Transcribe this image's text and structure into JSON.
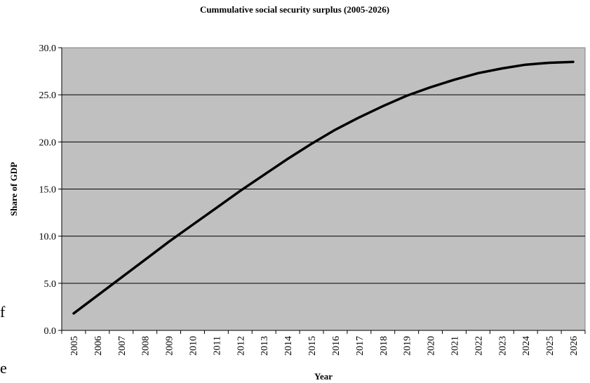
{
  "chart_data": {
    "type": "line",
    "title": "Cummulative social security surplus (2005-2026)",
    "xlabel": "Year",
    "ylabel": "Share of GDP",
    "categories": [
      "2005",
      "2006",
      "2007",
      "2008",
      "2009",
      "2010",
      "2011",
      "2012",
      "2013",
      "2014",
      "2015",
      "2016",
      "2017",
      "2018",
      "2019",
      "2020",
      "2021",
      "2022",
      "2023",
      "2024",
      "2025",
      "2026"
    ],
    "series": [
      {
        "values": [
          1.8,
          3.7,
          5.6,
          7.5,
          9.4,
          11.2,
          13.0,
          14.8,
          16.5,
          18.2,
          19.8,
          21.3,
          22.6,
          23.8,
          24.9,
          25.8,
          26.6,
          27.3,
          27.8,
          28.2,
          28.4,
          28.5
        ],
        "color": "#000000"
      }
    ],
    "ylim": [
      0,
      30
    ],
    "yticks": [
      "0.0",
      "5.0",
      "10.0",
      "15.0",
      "20.0",
      "25.0",
      "30.0"
    ],
    "grid": true,
    "plot_background": "#c0c0c0"
  },
  "stray_text": {
    "left_f": "f",
    "left_e": "e"
  }
}
